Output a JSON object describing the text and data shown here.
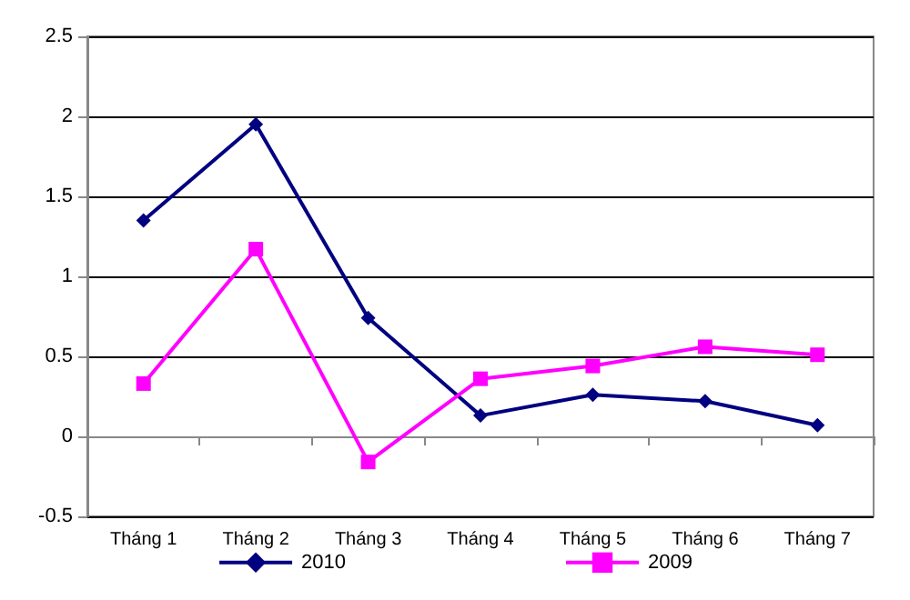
{
  "chart_data": {
    "type": "line",
    "categories": [
      "Tháng 1",
      "Tháng 2",
      "Tháng 3",
      "Tháng 4",
      "Tháng 5",
      "Tháng 6",
      "Tháng 7"
    ],
    "series": [
      {
        "name": "2010",
        "color": "#000080",
        "marker": "diamond",
        "values": [
          1.35,
          1.95,
          0.74,
          0.13,
          0.26,
          0.22,
          0.07
        ]
      },
      {
        "name": "2009",
        "color": "#ff00ff",
        "marker": "square",
        "values": [
          0.33,
          1.17,
          -0.16,
          0.36,
          0.44,
          0.56,
          0.51
        ]
      }
    ],
    "ylim": [
      -0.5,
      2.5
    ],
    "yticks": [
      -0.5,
      0,
      0.5,
      1,
      1.5,
      2,
      2.5
    ],
    "grid": "y",
    "legend": "bottom"
  }
}
